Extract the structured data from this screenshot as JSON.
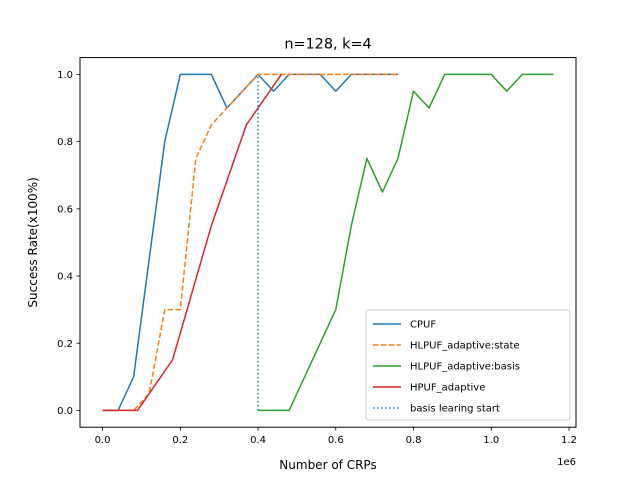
{
  "chart_data": {
    "type": "line",
    "title": "n=128, k=4",
    "xlabel": "Number of CRPs",
    "ylabel": "Success Rate(x100%)",
    "x_offset_label": "1e6",
    "xlim": [
      -0.058,
      1.218
    ],
    "ylim": [
      -0.05,
      1.05
    ],
    "x_ticks": [
      0.0,
      0.2,
      0.4,
      0.6,
      0.8,
      1.0,
      1.2
    ],
    "x_tick_labels": [
      "0.0",
      "0.2",
      "0.4",
      "0.6",
      "0.8",
      "1.0",
      "1.2"
    ],
    "y_ticks": [
      0.0,
      0.2,
      0.4,
      0.6,
      0.8,
      1.0
    ],
    "y_tick_labels": [
      "0.0",
      "0.2",
      "0.4",
      "0.6",
      "0.8",
      "1.0"
    ],
    "grid": false,
    "legend_position": "lower-right",
    "series": [
      {
        "name": "CPUF",
        "color": "#1f77b4",
        "style": "solid",
        "x": [
          0.0,
          0.04,
          0.08,
          0.12,
          0.16,
          0.2,
          0.24,
          0.28,
          0.32,
          0.36,
          0.4,
          0.44,
          0.48,
          0.52,
          0.56,
          0.6,
          0.64,
          0.68,
          0.72,
          0.76
        ],
        "y": [
          0.0,
          0.0,
          0.1,
          0.45,
          0.8,
          1.0,
          1.0,
          1.0,
          0.9,
          0.95,
          1.0,
          0.95,
          1.0,
          1.0,
          1.0,
          0.95,
          1.0,
          1.0,
          1.0,
          1.0
        ]
      },
      {
        "name": "HLPUF_adaptive:state",
        "color": "#ff7f0e",
        "style": "dashed",
        "x": [
          0.0,
          0.04,
          0.08,
          0.12,
          0.16,
          0.2,
          0.24,
          0.28,
          0.32,
          0.36,
          0.4,
          0.44,
          0.48,
          0.52,
          0.56,
          0.6,
          0.64,
          0.68,
          0.72,
          0.76
        ],
        "y": [
          0.0,
          0.0,
          0.0,
          0.05,
          0.3,
          0.3,
          0.75,
          0.85,
          0.9,
          0.95,
          1.0,
          1.0,
          1.0,
          1.0,
          1.0,
          1.0,
          1.0,
          1.0,
          1.0,
          1.0
        ]
      },
      {
        "name": "HLPUF_adaptive:basis",
        "color": "#2ca02c",
        "style": "solid",
        "x": [
          0.4,
          0.44,
          0.48,
          0.52,
          0.56,
          0.6,
          0.64,
          0.68,
          0.72,
          0.76,
          0.8,
          0.84,
          0.88,
          0.92,
          0.96,
          1.0,
          1.04,
          1.08,
          1.12,
          1.16
        ],
        "y": [
          0.0,
          0.0,
          0.0,
          0.1,
          0.2,
          0.3,
          0.55,
          0.75,
          0.65,
          0.75,
          0.95,
          0.9,
          1.0,
          1.0,
          1.0,
          1.0,
          0.95,
          1.0,
          1.0,
          1.0
        ]
      },
      {
        "name": "HPUF_adaptive",
        "color": "#d62728",
        "style": "solid",
        "x": [
          0.0,
          0.09,
          0.18,
          0.28,
          0.37,
          0.46
        ],
        "y": [
          0.0,
          0.0,
          0.15,
          0.55,
          0.85,
          1.0
        ]
      },
      {
        "name": "basis learing start",
        "color": "#1f77b4",
        "style": "dotted",
        "x": [
          0.4,
          0.4
        ],
        "y": [
          0.0,
          1.0
        ]
      }
    ]
  }
}
